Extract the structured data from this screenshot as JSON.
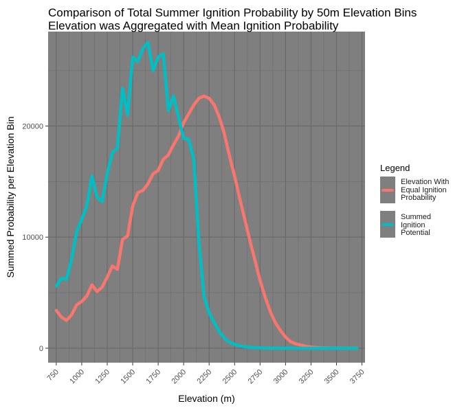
{
  "chart_data": {
    "type": "line",
    "title": "Comparison of Total Summer Ignition Probability by 50m Elevation Bins",
    "subtitle": "Elevation was Aggregated with Mean Ignition Probability",
    "xlabel": "Elevation (m)",
    "ylabel": "Summed Probability per Elevation Bin",
    "xlim": [
      670,
      3780
    ],
    "ylim": [
      -1300,
      28500
    ],
    "xticks": [
      750,
      1000,
      1250,
      1500,
      1750,
      2000,
      2250,
      2500,
      2750,
      3000,
      3250,
      3500,
      3750
    ],
    "yticks": [
      0,
      10000,
      20000
    ],
    "ytick_labels": [
      "0",
      "10000",
      "20000"
    ],
    "legend": {
      "title": "Legend",
      "position": "right",
      "entries": [
        {
          "name": "Elevation With Equal Ignition Probability",
          "lines": [
            "Elevation With",
            "Equal Ignition",
            "Probability"
          ],
          "color": "#f8766d"
        },
        {
          "name": "Summed Ignition Potential",
          "lines": [
            "Summed",
            "Ignition",
            "Potential"
          ],
          "color": "#00bfc4"
        }
      ]
    },
    "series": [
      {
        "name": "Elevation With Equal Ignition Probability",
        "color": "#f8766d",
        "x": [
          750,
          800,
          850,
          900,
          950,
          1000,
          1050,
          1100,
          1150,
          1200,
          1250,
          1300,
          1350,
          1400,
          1450,
          1500,
          1550,
          1600,
          1650,
          1700,
          1750,
          1800,
          1850,
          1900,
          1950,
          2000,
          2050,
          2100,
          2150,
          2200,
          2250,
          2300,
          2350,
          2400,
          2450,
          2500,
          2550,
          2600,
          2650,
          2700,
          2750,
          2800,
          2850,
          2900,
          2950,
          3000,
          3050,
          3100,
          3150,
          3200,
          3250,
          3300,
          3350,
          3400,
          3450,
          3500,
          3550,
          3600,
          3650,
          3700
        ],
        "y": [
          3400,
          2800,
          2500,
          3000,
          3900,
          4200,
          4700,
          5700,
          5100,
          5500,
          6400,
          7400,
          7100,
          9800,
          10100,
          12800,
          14000,
          14200,
          14800,
          15700,
          16000,
          17000,
          17400,
          18300,
          19100,
          20300,
          21100,
          21900,
          22500,
          22700,
          22500,
          21900,
          20800,
          19300,
          17300,
          15500,
          13500,
          11600,
          9700,
          7900,
          6100,
          4600,
          3300,
          2300,
          1600,
          1000,
          600,
          400,
          280,
          180,
          110,
          70,
          40,
          25,
          15,
          10,
          5,
          3,
          2,
          1
        ]
      },
      {
        "name": "Summed Ignition Potential",
        "color": "#00bfc4",
        "x": [
          750,
          800,
          850,
          900,
          950,
          1000,
          1050,
          1100,
          1150,
          1200,
          1250,
          1300,
          1350,
          1400,
          1450,
          1500,
          1550,
          1600,
          1650,
          1700,
          1750,
          1800,
          1850,
          1900,
          1950,
          2000,
          2050,
          2100,
          2150,
          2200,
          2250,
          2300,
          2350,
          2400,
          2450,
          2500,
          2550,
          2600,
          2650,
          2700,
          2750,
          2800,
          2850,
          2900,
          2950,
          3000,
          3050,
          3100,
          3150,
          3200,
          3250,
          3300,
          3350,
          3400,
          3450,
          3500,
          3550,
          3600,
          3650,
          3700
        ],
        "y": [
          5600,
          6300,
          6200,
          8000,
          10500,
          11600,
          12800,
          15500,
          13600,
          13200,
          15700,
          17600,
          18000,
          23400,
          21000,
          26200,
          25800,
          27000,
          27500,
          25000,
          26200,
          26500,
          21400,
          22700,
          20800,
          18900,
          18800,
          17000,
          9500,
          4700,
          3200,
          2300,
          1500,
          900,
          550,
          350,
          220,
          140,
          90,
          55,
          35,
          22,
          14,
          9,
          6,
          4,
          3,
          2,
          1,
          1,
          1,
          0,
          0,
          0,
          0,
          0,
          0,
          0,
          0,
          0
        ]
      }
    ]
  }
}
